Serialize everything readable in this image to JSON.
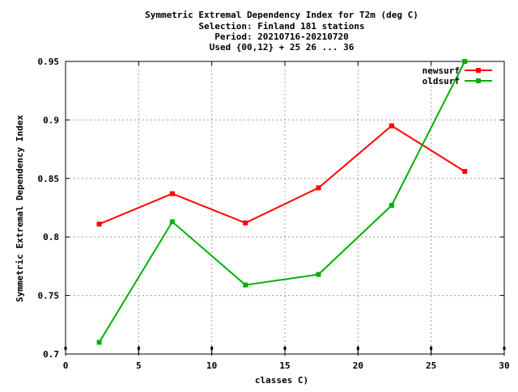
{
  "chart_data": {
    "type": "line",
    "title_lines": [
      "Symmetric Extremal Dependency Index  for T2m (deg C)",
      "Selection: Finland    181 stations",
      "Period: 20210716-20210720",
      "Used {00,12} + 25 26 ... 36"
    ],
    "xlabel": "classes C)",
    "ylabel": "Symmetric Extremal Dependency Index",
    "xlim": [
      0,
      30
    ],
    "ylim": [
      0.7,
      0.95
    ],
    "x_ticks": [
      "0",
      "5",
      "10",
      "15",
      "20",
      "25",
      "30"
    ],
    "y_ticks": [
      "0.7",
      "0.75",
      "0.8",
      "0.85",
      "0.9",
      "0.95"
    ],
    "grid": true,
    "legend_position": "top-right",
    "x": [
      2.3,
      7.3,
      12.3,
      17.3,
      22.3,
      27.3
    ],
    "series": [
      {
        "name": "newsurf",
        "color": "#ff0000",
        "values": [
          0.811,
          0.837,
          0.812,
          0.842,
          0.895,
          0.856
        ]
      },
      {
        "name": "oldsurf",
        "color": "#00b000",
        "values": [
          0.71,
          0.813,
          0.759,
          0.768,
          0.827,
          0.95
        ]
      }
    ],
    "baseline_markers_x": [
      0,
      5,
      10,
      15,
      20,
      25,
      30
    ]
  }
}
